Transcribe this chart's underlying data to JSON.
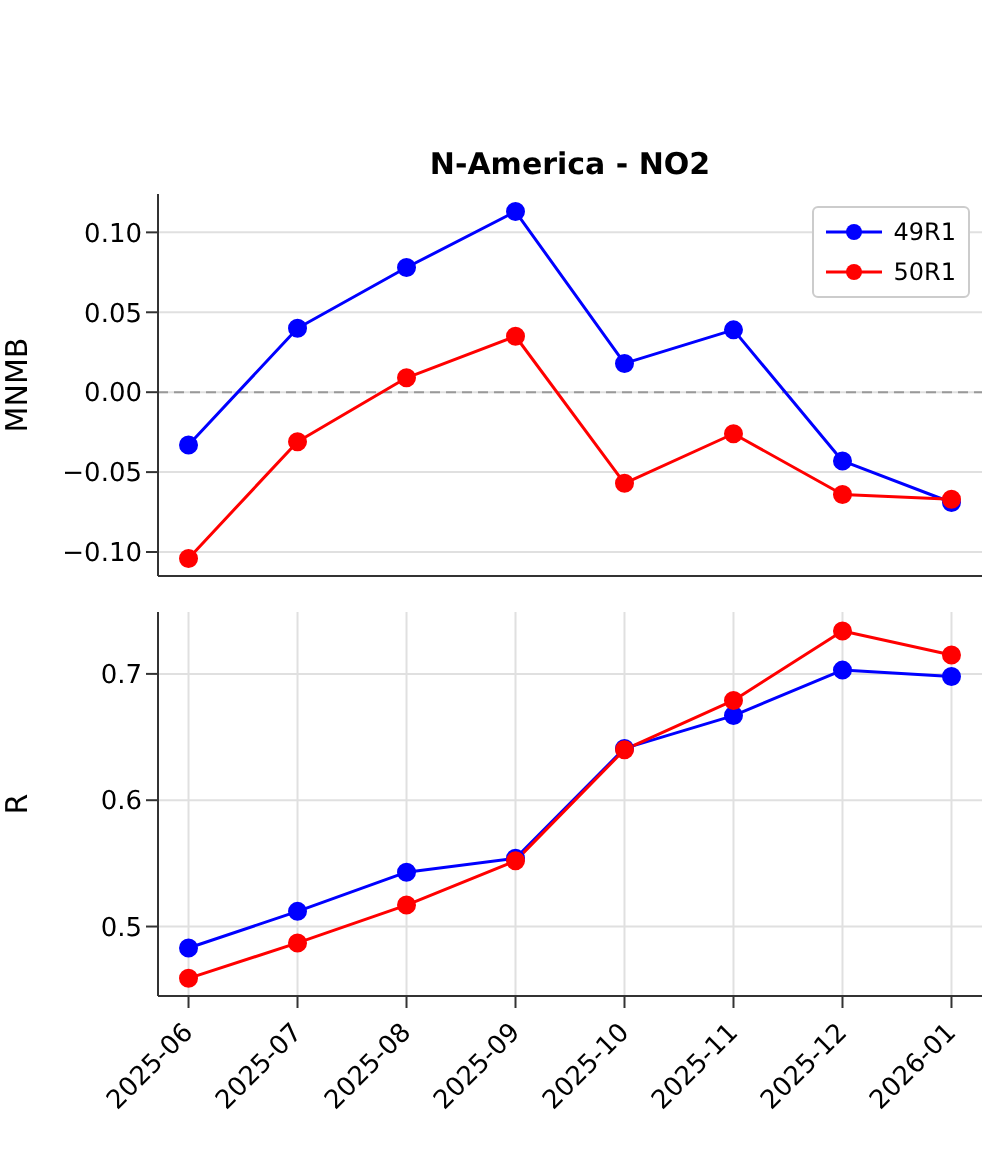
{
  "chart_data": [
    {
      "type": "line",
      "title": "N-America - NO2",
      "ylabel": "MNMB",
      "categories": [
        "2025-06",
        "2025-07",
        "2025-08",
        "2025-09",
        "2025-10",
        "2025-11",
        "2025-12",
        "2026-01"
      ],
      "ylim": [
        -0.115,
        0.124
      ],
      "yticks": [
        {
          "value": -0.1,
          "label": "−0.10"
        },
        {
          "value": -0.05,
          "label": "−0.05"
        },
        {
          "value": 0,
          "label": "0.00"
        },
        {
          "value": 0.05,
          "label": "0.05"
        },
        {
          "value": 0.1,
          "label": "0.10"
        }
      ],
      "tick_labels": "y",
      "grid": true,
      "legend": "top right",
      "marker": "circle",
      "line_style": "solid",
      "ref_lines": [
        {
          "axis": "y",
          "value": 0,
          "color": "#999999",
          "line_style": "dashed"
        }
      ],
      "series": [
        {
          "name": "49R1",
          "color": "#0000ff",
          "values": [
            -0.033,
            0.04,
            0.078,
            0.113,
            0.018,
            0.039,
            -0.043,
            -0.069
          ]
        },
        {
          "name": "50R1",
          "color": "#ff0000",
          "values": [
            -0.104,
            -0.031,
            0.009,
            0.035,
            -0.057,
            -0.026,
            -0.064,
            -0.067
          ]
        }
      ]
    },
    {
      "type": "line",
      "ylabel": "R",
      "categories": [
        "2025-06",
        "2025-07",
        "2025-08",
        "2025-09",
        "2025-10",
        "2025-11",
        "2025-12",
        "2026-01"
      ],
      "ylim": [
        0.445,
        0.749
      ],
      "yticks": [
        0.5,
        0.6,
        0.7
      ],
      "grid": true,
      "marker": "circle",
      "line_style": "solid",
      "series": [
        {
          "color": "#0000ff",
          "values": [
            0.483,
            0.512,
            0.543,
            0.554,
            0.641,
            0.667,
            0.703,
            0.698
          ]
        },
        {
          "color": "#ff0000",
          "values": [
            0.459,
            0.487,
            0.517,
            0.552,
            0.64,
            0.679,
            0.734,
            0.715
          ]
        }
      ]
    }
  ]
}
